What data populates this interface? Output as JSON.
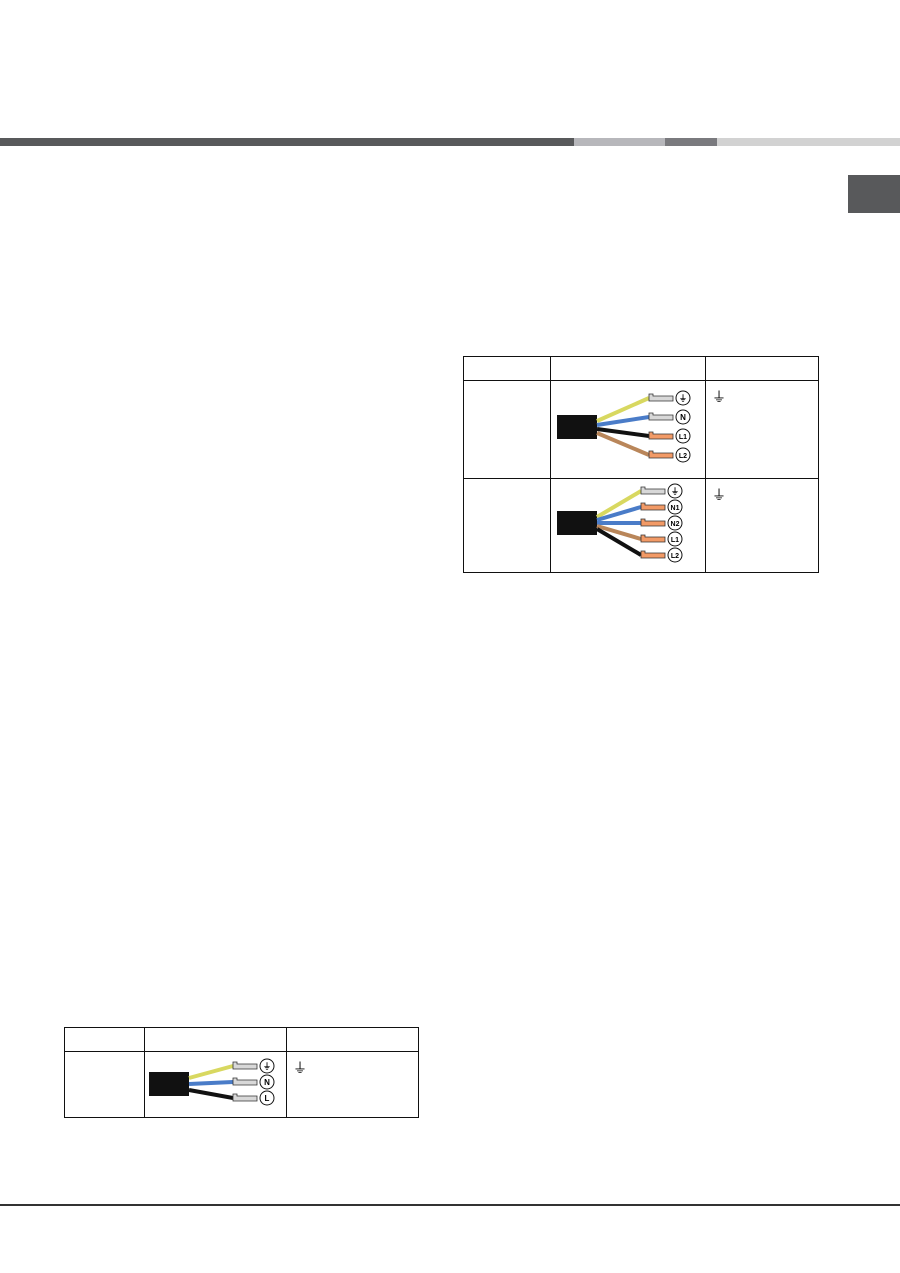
{
  "header": {
    "bar_colors": [
      "#58595b",
      "#b7b7bb",
      "#7a7a7e",
      "#d2d2d2"
    ],
    "tab_color": "#58595b"
  },
  "table_three_phase": {
    "rows": [
      {
        "terminals": [
          "earth",
          "N",
          "L1",
          "L2"
        ],
        "wire_colors": [
          "#d8d860",
          "#4a7cc8",
          "#111111",
          "#b9865a"
        ],
        "earth_symbol": "⏚"
      },
      {
        "terminals": [
          "earth",
          "N1",
          "N2",
          "L1",
          "L2"
        ],
        "wire_colors": [
          "#d8d860",
          "#4a7cc8",
          "#4a7cc8",
          "#b9865a",
          "#111111"
        ],
        "earth_symbol": "⏚"
      }
    ]
  },
  "table_single_phase": {
    "rows": [
      {
        "terminals": [
          "earth",
          "N",
          "L"
        ],
        "wire_colors": [
          "#d8d860",
          "#4a7cc8",
          "#111111"
        ],
        "earth_symbol": "⏚"
      }
    ]
  },
  "footer": {
    "rule_color": "#333333"
  }
}
